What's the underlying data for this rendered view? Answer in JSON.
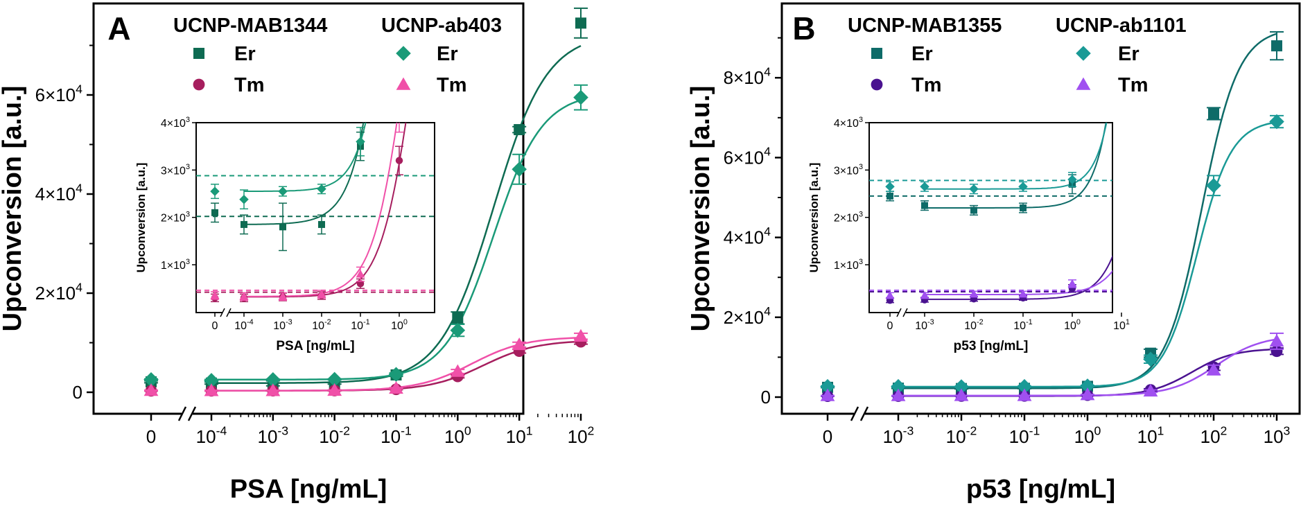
{
  "chart_data": [
    {
      "type": "scatter",
      "panel_label": "A",
      "xlabel": "PSA [ng/mL]",
      "ylabel": "Upconversion [a.u.]",
      "x_scale": "log with broken axis",
      "x_ticks": [
        {
          "label": "0",
          "sup": "",
          "value": 0
        },
        {
          "label": "10",
          "sup": "-4",
          "value": 0.0001
        },
        {
          "label": "10",
          "sup": "-3",
          "value": 0.001
        },
        {
          "label": "10",
          "sup": "-2",
          "value": 0.01
        },
        {
          "label": "10",
          "sup": "-1",
          "value": 0.1
        },
        {
          "label": "10",
          "sup": "0",
          "value": 1
        },
        {
          "label": "10",
          "sup": "1",
          "value": 10
        },
        {
          "label": "10",
          "sup": "2",
          "value": 100
        }
      ],
      "y_ticks": [
        {
          "label": "0",
          "sup": "",
          "value": 0
        },
        {
          "label": "2×10",
          "sup": "4",
          "value": 20000
        },
        {
          "label": "4×10",
          "sup": "4",
          "value": 40000
        },
        {
          "label": "6×10",
          "sup": "4",
          "value": 60000
        }
      ],
      "ylim": [
        -6000,
        78000
      ],
      "legend": {
        "groups": [
          {
            "title": "UCNP-MAB1344",
            "items": [
              {
                "label": "Er",
                "marker": "square",
                "color": "#0e6b52"
              },
              {
                "label": "Tm",
                "marker": "circle",
                "color": "#a61e5e"
              }
            ]
          },
          {
            "title": "UCNP-ab403",
            "items": [
              {
                "label": "Er",
                "marker": "diamond",
                "color": "#1a9a78"
              },
              {
                "label": "Tm",
                "marker": "triangle",
                "color": "#f050a8"
              }
            ]
          }
        ]
      },
      "series": [
        {
          "name": "UCNP-MAB1344 Er",
          "marker": "square",
          "color": "#0e6b52",
          "x": [
            0,
            0.0001,
            0.001,
            0.01,
            0.1,
            1,
            10,
            100
          ],
          "y": [
            2100,
            1850,
            1800,
            1850,
            3500,
            15000,
            53000,
            74500
          ],
          "err": [
            200,
            200,
            500,
            200,
            300,
            1200,
            600,
            3000
          ],
          "fit": {
            "bottom": 1850,
            "top": 72500,
            "ec50": 3.8,
            "hill": 1.0
          }
        },
        {
          "name": "UCNP-MAB1344 Tm",
          "marker": "circle",
          "color": "#a61e5e",
          "x": [
            0,
            0.0001,
            0.001,
            0.01,
            0.1,
            1,
            10,
            100
          ],
          "y": [
            300,
            300,
            320,
            350,
            600,
            3200,
            8300,
            10200
          ],
          "err": [
            80,
            80,
            80,
            80,
            100,
            300,
            400,
            500
          ],
          "fit": {
            "bottom": 320,
            "top": 10500,
            "ec50": 2.6,
            "hill": 1.0
          }
        },
        {
          "name": "UCNP-ab403 Er",
          "marker": "diamond",
          "color": "#1a9a78",
          "x": [
            0,
            0.0001,
            0.001,
            0.01,
            0.1,
            1,
            10,
            100
          ],
          "y": [
            2550,
            2380,
            2550,
            2600,
            3600,
            12500,
            45000,
            59500
          ],
          "err": [
            150,
            200,
            100,
            100,
            300,
            1200,
            3000,
            2500
          ],
          "fit": {
            "bottom": 2550,
            "top": 60500,
            "ec50": 3.8,
            "hill": 1.1
          }
        },
        {
          "name": "UCNP-ab403 Tm",
          "marker": "triangle",
          "color": "#f050a8",
          "x": [
            0,
            0.0001,
            0.001,
            0.01,
            0.1,
            1,
            10,
            100
          ],
          "y": [
            350,
            330,
            330,
            380,
            800,
            4200,
            9600,
            11300
          ],
          "err": [
            80,
            80,
            80,
            80,
            150,
            400,
            500,
            600
          ],
          "fit": {
            "bottom": 330,
            "top": 11200,
            "ec50": 1.7,
            "hill": 1.0
          }
        }
      ],
      "inset": {
        "xlabel": "PSA [ng/mL]",
        "ylabel": "Upconversion [a.u.]",
        "x_ticks": [
          {
            "label": "0",
            "sup": "",
            "value": 0
          },
          {
            "label": "10",
            "sup": "-4",
            "value": 0.0001
          },
          {
            "label": "10",
            "sup": "-3",
            "value": 0.001
          },
          {
            "label": "10",
            "sup": "-2",
            "value": 0.01
          },
          {
            "label": "10",
            "sup": "-1",
            "value": 0.1
          },
          {
            "label": "10",
            "sup": "0",
            "value": 1
          }
        ],
        "y_ticks": [
          {
            "label": "1×10",
            "sup": "3",
            "value": 1000
          },
          {
            "label": "2×10",
            "sup": "3",
            "value": 2000
          },
          {
            "label": "3×10",
            "sup": "3",
            "value": 3000
          },
          {
            "label": "4×10",
            "sup": "3",
            "value": 4000
          }
        ],
        "ylim": [
          0,
          4000
        ],
        "thresholds": [
          {
            "value": 2880,
            "color": "#1a9a78"
          },
          {
            "value": 2020,
            "color": "#0e6b52"
          },
          {
            "value": 420,
            "color": "#a61e5e"
          },
          {
            "value": 460,
            "color": "#f050a8"
          }
        ]
      }
    },
    {
      "type": "scatter",
      "panel_label": "B",
      "xlabel": "p53 [ng/mL]",
      "ylabel": "Upconversion [a.u.]",
      "x_scale": "log with broken axis",
      "x_ticks": [
        {
          "label": "0",
          "sup": "",
          "value": 0
        },
        {
          "label": "10",
          "sup": "-3",
          "value": 0.001
        },
        {
          "label": "10",
          "sup": "-2",
          "value": 0.01
        },
        {
          "label": "10",
          "sup": "-1",
          "value": 0.1
        },
        {
          "label": "10",
          "sup": "0",
          "value": 1
        },
        {
          "label": "10",
          "sup": "1",
          "value": 10
        },
        {
          "label": "10",
          "sup": "2",
          "value": 100
        },
        {
          "label": "10",
          "sup": "3",
          "value": 1000
        }
      ],
      "y_ticks": [
        {
          "label": "0",
          "sup": "",
          "value": 0
        },
        {
          "label": "2×10",
          "sup": "4",
          "value": 20000
        },
        {
          "label": "4×10",
          "sup": "4",
          "value": 40000
        },
        {
          "label": "6×10",
          "sup": "4",
          "value": 60000
        },
        {
          "label": "8×10",
          "sup": "4",
          "value": 80000
        }
      ],
      "ylim": [
        -6000,
        96000
      ],
      "legend": {
        "groups": [
          {
            "title": "UCNP-MAB1355",
            "items": [
              {
                "label": "Er",
                "marker": "square",
                "color": "#0e6b68"
              },
              {
                "label": "Tm",
                "marker": "circle",
                "color": "#4a1290"
              }
            ]
          },
          {
            "title": "UCNP-ab1101",
            "items": [
              {
                "label": "Er",
                "marker": "diamond",
                "color": "#1a9a96"
              },
              {
                "label": "Tm",
                "marker": "triangle",
                "color": "#a050f0"
              }
            ]
          }
        ]
      },
      "series": [
        {
          "name": "UCNP-MAB1355 Er",
          "marker": "square",
          "color": "#0e6b68",
          "x": [
            0,
            0.001,
            0.01,
            0.1,
            1,
            10,
            100,
            1000
          ],
          "y": [
            2450,
            2250,
            2150,
            2200,
            2700,
            11000,
            71000,
            88000
          ],
          "err": [
            100,
            100,
            100,
            100,
            200,
            1000,
            1500,
            3500
          ],
          "fit": {
            "bottom": 2200,
            "top": 92500,
            "ec50": 65,
            "hill": 1.5
          }
        },
        {
          "name": "UCNP-MAB1355 Tm",
          "marker": "circle",
          "color": "#4a1290",
          "x": [
            0,
            0.001,
            0.01,
            0.1,
            1,
            10,
            100,
            1000
          ],
          "y": [
            250,
            260,
            280,
            300,
            500,
            1800,
            7500,
            11500
          ],
          "err": [
            50,
            50,
            50,
            50,
            80,
            300,
            800,
            800
          ],
          "fit": {
            "bottom": 270,
            "top": 12200,
            "ec50": 45,
            "hill": 1.3
          }
        },
        {
          "name": "UCNP-ab1101 Er",
          "marker": "diamond",
          "color": "#1a9a96",
          "x": [
            0,
            0.001,
            0.01,
            0.1,
            1,
            10,
            100,
            1000
          ],
          "y": [
            2650,
            2650,
            2600,
            2650,
            2800,
            9500,
            53000,
            69000
          ],
          "err": [
            100,
            100,
            100,
            100,
            150,
            1000,
            2500,
            1500
          ],
          "fit": {
            "bottom": 2600,
            "top": 69500,
            "ec50": 55,
            "hill": 1.6
          }
        },
        {
          "name": "UCNP-ab1101 Tm",
          "marker": "triangle",
          "color": "#a050f0",
          "x": [
            0,
            0.001,
            0.01,
            0.1,
            1,
            10,
            100,
            1000
          ],
          "y": [
            350,
            350,
            380,
            380,
            600,
            1500,
            6800,
            14000
          ],
          "err": [
            60,
            60,
            60,
            60,
            80,
            300,
            1200,
            2000
          ],
          "fit": {
            "bottom": 370,
            "top": 15500,
            "ec50": 110,
            "hill": 1.2
          }
        }
      ],
      "inset": {
        "xlabel": "p53 [ng/mL]",
        "ylabel": "Upconversion [a.u.]",
        "x_ticks": [
          {
            "label": "0",
            "sup": "",
            "value": 0
          },
          {
            "label": "10",
            "sup": "-3",
            "value": 0.001
          },
          {
            "label": "10",
            "sup": "-2",
            "value": 0.01
          },
          {
            "label": "10",
            "sup": "-1",
            "value": 0.1
          },
          {
            "label": "10",
            "sup": "0",
            "value": 1
          },
          {
            "label": "10",
            "sup": "1",
            "value": 10
          }
        ],
        "y_ticks": [
          {
            "label": "1×10",
            "sup": "3",
            "value": 1000
          },
          {
            "label": "2×10",
            "sup": "3",
            "value": 2000
          },
          {
            "label": "3×10",
            "sup": "3",
            "value": 3000
          },
          {
            "label": "4×10",
            "sup": "3",
            "value": 4000
          }
        ],
        "ylim": [
          0,
          4000
        ],
        "thresholds": [
          {
            "value": 2780,
            "color": "#1a9a96"
          },
          {
            "value": 2450,
            "color": "#0e6b68"
          },
          {
            "value": 460,
            "color": "#a050f0"
          },
          {
            "value": 430,
            "color": "#4a1290"
          }
        ]
      }
    }
  ]
}
